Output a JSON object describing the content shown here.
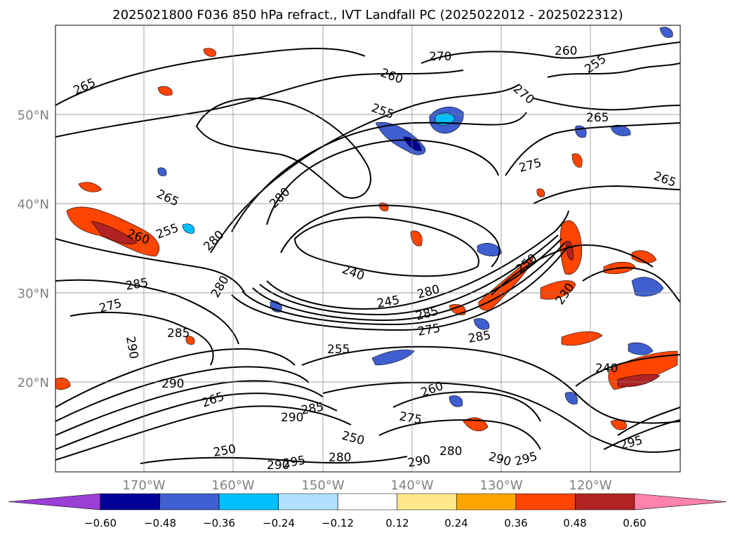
{
  "title": "2025021800 F036 850 hPa refract., IVT Landfall PC (2025022012 - 2025022312)",
  "lat_labels": [
    "50°N",
    "40°N",
    "30°N",
    "20°N"
  ],
  "lon_labels": [
    "170°W",
    "160°W",
    "150°W",
    "140°W",
    "130°W",
    "120°W"
  ],
  "contour_labels": [
    "265",
    "265",
    "260",
    "255",
    "270",
    "260",
    "255",
    "270",
    "265",
    "275",
    "265",
    "280",
    "280",
    "260",
    "255",
    "280",
    "240",
    "285",
    "275",
    "285",
    "290",
    "280",
    "245",
    "285",
    "275",
    "285",
    "255",
    "250",
    "230",
    "290",
    "285",
    "250",
    "240",
    "260",
    "275",
    "290",
    "295",
    "295",
    "280",
    "290",
    "280",
    "290",
    "290",
    "295",
    "250",
    "265"
  ],
  "colorbar": {
    "ticks": [
      "−0.60",
      "−0.48",
      "−0.36",
      "−0.24",
      "−0.12",
      "0.12",
      "0.24",
      "0.36",
      "0.48",
      "0.60"
    ],
    "colors": [
      "#9a3fd5",
      "#000096",
      "#3f5fd0",
      "#00bfff",
      "#b0e2ff",
      "#ffffff",
      "#ffe78a",
      "#ffa500",
      "#ff4500",
      "#b22222",
      "#ff82ab"
    ]
  }
}
